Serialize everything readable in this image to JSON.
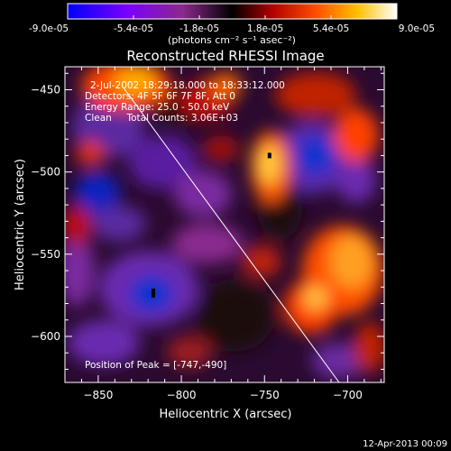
{
  "colorbar": {
    "ticks": [
      "-9.0e-05",
      "-5.4e-05",
      "-1.8e-05",
      "1.8e-05",
      "5.4e-05",
      "9.0e-05"
    ],
    "units": "(photons cm⁻² s⁻¹ asec⁻²)"
  },
  "chart_data": {
    "type": "heatmap",
    "title": "Reconstructed RHESSI Image",
    "xlabel": "Heliocentric X (arcsec)",
    "ylabel": "Heliocentric Y (arcsec)",
    "xlim": [
      -870,
      -678
    ],
    "ylim": [
      -628,
      -436
    ],
    "xticks": [
      -850,
      -800,
      -750,
      -700
    ],
    "yticks": [
      -450,
      -500,
      -550,
      -600
    ],
    "xtick_labels": [
      "−850",
      "−800",
      "−750",
      "−700"
    ],
    "ytick_labels": [
      "−450",
      "−500",
      "−550",
      "−600"
    ],
    "colorscale_range": [
      -9e-05,
      9e-05
    ],
    "annotations": [
      "2-Jul-2002 18:29:18.000 to 18:33:12.000",
      "Detectors: 4F 5F 6F 7F 8F, Att 0",
      "Energy Range: 25.0 - 50.0 keV",
      "Clean     Total Counts: 3.06E+03"
    ],
    "peak_label": "Position of Peak = [-747,-490]",
    "peak_position": [
      -747,
      -490
    ]
  },
  "footer": {
    "timestamp": "12-Apr-2013 00:09"
  }
}
